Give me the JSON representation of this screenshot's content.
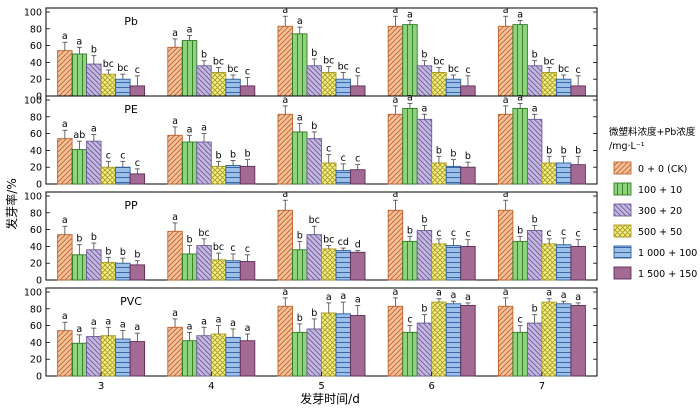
{
  "chart_data": {
    "type": "bar",
    "ylabel": "发芽率/%",
    "xlabel": "发芽时间/d",
    "categories": [
      "3",
      "4",
      "5",
      "6",
      "7"
    ],
    "ylim": [
      0,
      100
    ],
    "yticks": [
      "0",
      "20",
      "40",
      "60",
      "80",
      "100"
    ],
    "legend": {
      "title": "微塑料浓度+Pb浓度",
      "unit": "/mg·L⁻¹",
      "placement": "right",
      "entries": [
        "0 + 0 (CK)",
        "100 + 10",
        "300 + 20",
        "500 + 50",
        "1 000 + 100",
        "1 500 + 150"
      ]
    },
    "series_style": [
      {
        "fill": "#f4c29a",
        "stroke": "#c0612c",
        "pattern": "diag-right"
      },
      {
        "fill": "#8fd47d",
        "stroke": "#2f7a25",
        "pattern": "vertical"
      },
      {
        "fill": "#c4b8df",
        "stroke": "#6e5b9c",
        "pattern": "diag-left"
      },
      {
        "fill": "#f6f08e",
        "stroke": "#a89b1e",
        "pattern": "cross"
      },
      {
        "fill": "#9cc0ea",
        "stroke": "#2e5e9c",
        "pattern": "horizontal"
      },
      {
        "fill": "#a36a93",
        "stroke": "#5d2c55",
        "pattern": "solid"
      }
    ],
    "panels": [
      {
        "label": "Pb",
        "values": [
          [
            54,
            58,
            83,
            83,
            83
          ],
          [
            50,
            66,
            74,
            85,
            85
          ],
          [
            38,
            36,
            36,
            36,
            36
          ],
          [
            26,
            28,
            28,
            28,
            28
          ],
          [
            20,
            20,
            20,
            20,
            20
          ],
          [
            12,
            12,
            12,
            12,
            12
          ]
        ],
        "errors": [
          [
            10,
            10,
            12,
            12,
            12
          ],
          [
            8,
            6,
            8,
            5,
            5
          ],
          [
            10,
            6,
            8,
            6,
            6
          ],
          [
            5,
            6,
            7,
            6,
            6
          ],
          [
            6,
            5,
            8,
            5,
            5
          ],
          [
            12,
            10,
            12,
            12,
            12
          ]
        ],
        "letters": [
          [
            "a",
            "a",
            "a",
            "a",
            "a"
          ],
          [
            "a",
            "a",
            "a",
            "a",
            "a"
          ],
          [
            "b",
            "b",
            "b",
            "b",
            "b"
          ],
          [
            "bc",
            "bc",
            "bc",
            "bc",
            "bc"
          ],
          [
            "bc",
            "bc",
            "bc",
            "bc",
            "bc"
          ],
          [
            "c",
            "c",
            "c",
            "c",
            "c"
          ]
        ]
      },
      {
        "label": "PE",
        "values": [
          [
            54,
            58,
            83,
            83,
            83
          ],
          [
            41,
            50,
            62,
            90,
            90
          ],
          [
            51,
            50,
            54,
            77,
            77
          ],
          [
            20,
            21,
            25,
            25,
            25
          ],
          [
            20,
            22,
            16,
            21,
            25
          ],
          [
            12,
            21,
            17,
            20,
            23
          ]
        ],
        "errors": [
          [
            10,
            10,
            10,
            10,
            10
          ],
          [
            10,
            8,
            10,
            6,
            6
          ],
          [
            8,
            10,
            8,
            6,
            6
          ],
          [
            7,
            6,
            10,
            8,
            8
          ],
          [
            7,
            6,
            8,
            8,
            8
          ],
          [
            6,
            8,
            6,
            6,
            10
          ]
        ],
        "letters": [
          [
            "a",
            "a",
            "a",
            "a",
            "a"
          ],
          [
            "ab",
            "a",
            "a",
            "a",
            "a"
          ],
          [
            "a",
            "a",
            "b",
            "a",
            "a"
          ],
          [
            "c",
            "b",
            "c",
            "b",
            "b"
          ],
          [
            "c",
            "b",
            "c",
            "b",
            "b"
          ],
          [
            "c",
            "b",
            "c",
            "b",
            "b"
          ]
        ]
      },
      {
        "label": "PP",
        "values": [
          [
            54,
            58,
            83,
            83,
            83
          ],
          [
            30,
            31,
            36,
            46,
            46
          ],
          [
            36,
            41,
            54,
            59,
            59
          ],
          [
            21,
            24,
            37,
            43,
            43
          ],
          [
            20,
            23,
            35,
            41,
            42
          ],
          [
            18,
            22,
            33,
            40,
            40
          ]
        ],
        "errors": [
          [
            10,
            10,
            12,
            12,
            12
          ],
          [
            12,
            10,
            10,
            6,
            6
          ],
          [
            8,
            8,
            10,
            6,
            6
          ],
          [
            6,
            8,
            4,
            6,
            6
          ],
          [
            6,
            8,
            3,
            8,
            8
          ],
          [
            5,
            8,
            2,
            8,
            8
          ]
        ],
        "letters": [
          [
            "a",
            "a",
            "a",
            "a",
            "a"
          ],
          [
            "b",
            "b",
            "b",
            "b",
            "b"
          ],
          [
            "b",
            "bc",
            "bc",
            "b",
            "b"
          ],
          [
            "b",
            "bc",
            "bc",
            "c",
            "c"
          ],
          [
            "b",
            "c",
            "cd",
            "c",
            "c"
          ],
          [
            "b",
            "c",
            "d",
            "c",
            "c"
          ]
        ]
      },
      {
        "label": "PVC",
        "values": [
          [
            54,
            58,
            83,
            83,
            83
          ],
          [
            39,
            42,
            52,
            52,
            52
          ],
          [
            47,
            48,
            56,
            63,
            63
          ],
          [
            48,
            50,
            75,
            88,
            88
          ],
          [
            44,
            46,
            74,
            86,
            86
          ],
          [
            41,
            42,
            72,
            84,
            84
          ]
        ],
        "errors": [
          [
            10,
            10,
            10,
            10,
            10
          ],
          [
            10,
            10,
            10,
            8,
            8
          ],
          [
            10,
            10,
            12,
            10,
            10
          ],
          [
            10,
            10,
            12,
            4,
            4
          ],
          [
            10,
            10,
            14,
            3,
            3
          ],
          [
            10,
            8,
            12,
            3,
            3
          ]
        ],
        "letters": [
          [
            "a",
            "a",
            "a",
            "a",
            "a"
          ],
          [
            "a",
            "a",
            "b",
            "c",
            "c"
          ],
          [
            "a",
            "a",
            "b",
            "b",
            "b"
          ],
          [
            "a",
            "a",
            "a",
            "a",
            "a"
          ],
          [
            "a",
            "a",
            "a",
            "a",
            "a"
          ],
          [
            "a",
            "a",
            "a",
            "a",
            "a"
          ]
        ]
      }
    ]
  }
}
